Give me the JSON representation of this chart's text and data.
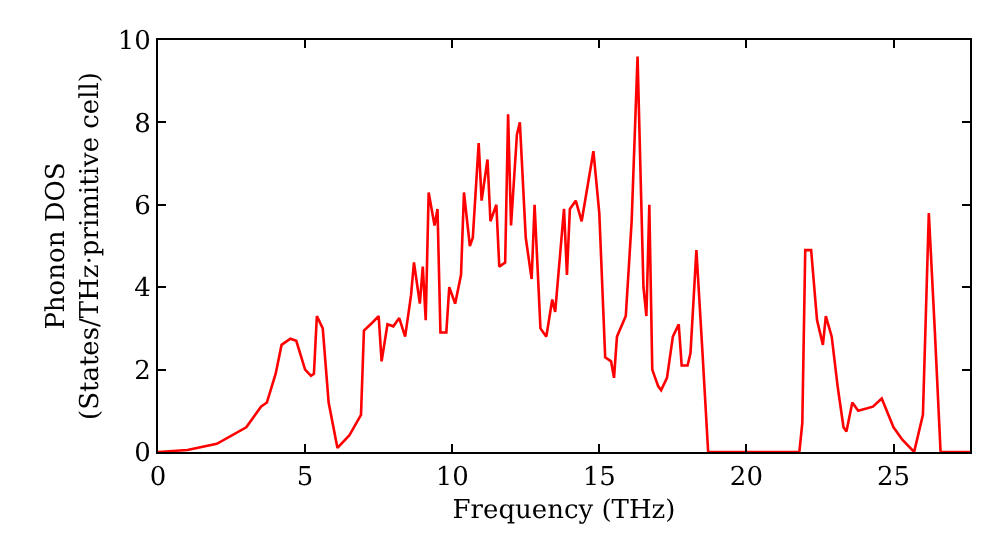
{
  "chart_data": {
    "type": "line",
    "xlabel": "Frequency (THz)",
    "ylabel": "Phonon DOS\n(States/THz·primitive cell)",
    "xlim": [
      0,
      27.6
    ],
    "ylim": [
      0,
      10
    ],
    "xticks": [
      0,
      5,
      10,
      15,
      20,
      25
    ],
    "yticks": [
      0,
      2,
      4,
      6,
      8,
      10
    ],
    "series": [
      {
        "color": "#ff0000",
        "x": [
          0,
          1,
          2,
          3,
          3.5,
          3.7,
          4,
          4.2,
          4.5,
          4.7,
          5,
          5.2,
          5.3,
          5.4,
          5.6,
          5.8,
          6.1,
          6.5,
          6.9,
          7.0,
          7.3,
          7.5,
          7.6,
          7.8,
          8.0,
          8.2,
          8.4,
          8.6,
          8.7,
          8.9,
          9.0,
          9.1,
          9.2,
          9.4,
          9.5,
          9.6,
          9.8,
          9.9,
          10.1,
          10.3,
          10.4,
          10.6,
          10.7,
          10.9,
          11.0,
          11.2,
          11.3,
          11.5,
          11.6,
          11.8,
          11.9,
          12.0,
          12.2,
          12.3,
          12.5,
          12.7,
          12.8,
          13.0,
          13.2,
          13.4,
          13.5,
          13.8,
          13.9,
          14.0,
          14.2,
          14.4,
          14.8,
          15.0,
          15.2,
          15.4,
          15.5,
          15.6,
          15.9,
          16.1,
          16.3,
          16.5,
          16.6,
          16.7,
          16.8,
          17.0,
          17.1,
          17.3,
          17.5,
          17.7,
          17.8,
          18.0,
          18.1,
          18.3,
          18.5,
          18.7,
          21.8,
          21.9,
          22.0,
          22.2,
          22.4,
          22.6,
          22.7,
          22.9,
          23.1,
          23.3,
          23.4,
          23.6,
          23.8,
          24.3,
          24.6,
          25.0,
          25.3,
          25.7,
          26.0,
          26.2,
          26.4,
          26.6,
          27.6
        ],
        "values": [
          0,
          0.05,
          0.2,
          0.6,
          1.1,
          1.2,
          1.9,
          2.6,
          2.75,
          2.7,
          2.0,
          1.85,
          1.9,
          3.3,
          3.0,
          1.2,
          0.1,
          0.4,
          0.9,
          2.95,
          3.15,
          3.3,
          2.2,
          3.1,
          3.05,
          3.25,
          2.8,
          3.8,
          4.6,
          3.6,
          4.5,
          3.2,
          6.3,
          5.5,
          5.9,
          2.9,
          2.9,
          4.0,
          3.6,
          4.3,
          6.3,
          5.0,
          5.2,
          7.5,
          6.1,
          7.1,
          5.6,
          6.0,
          4.5,
          4.6,
          8.2,
          5.5,
          7.7,
          8.0,
          5.2,
          4.2,
          6.0,
          3.0,
          2.8,
          3.7,
          3.4,
          5.9,
          4.3,
          5.9,
          6.1,
          5.6,
          7.3,
          5.8,
          2.3,
          2.2,
          1.8,
          2.8,
          3.3,
          5.6,
          9.6,
          4.0,
          3.3,
          6.0,
          2.0,
          1.6,
          1.5,
          1.8,
          2.8,
          3.1,
          2.1,
          2.1,
          2.4,
          4.9,
          2.5,
          0,
          0,
          0.7,
          4.9,
          4.9,
          3.2,
          2.6,
          3.3,
          2.8,
          1.6,
          0.6,
          0.5,
          1.2,
          1.0,
          1.1,
          1.3,
          0.6,
          0.3,
          0,
          0.9,
          5.8,
          3.0,
          0,
          0
        ]
      }
    ]
  }
}
